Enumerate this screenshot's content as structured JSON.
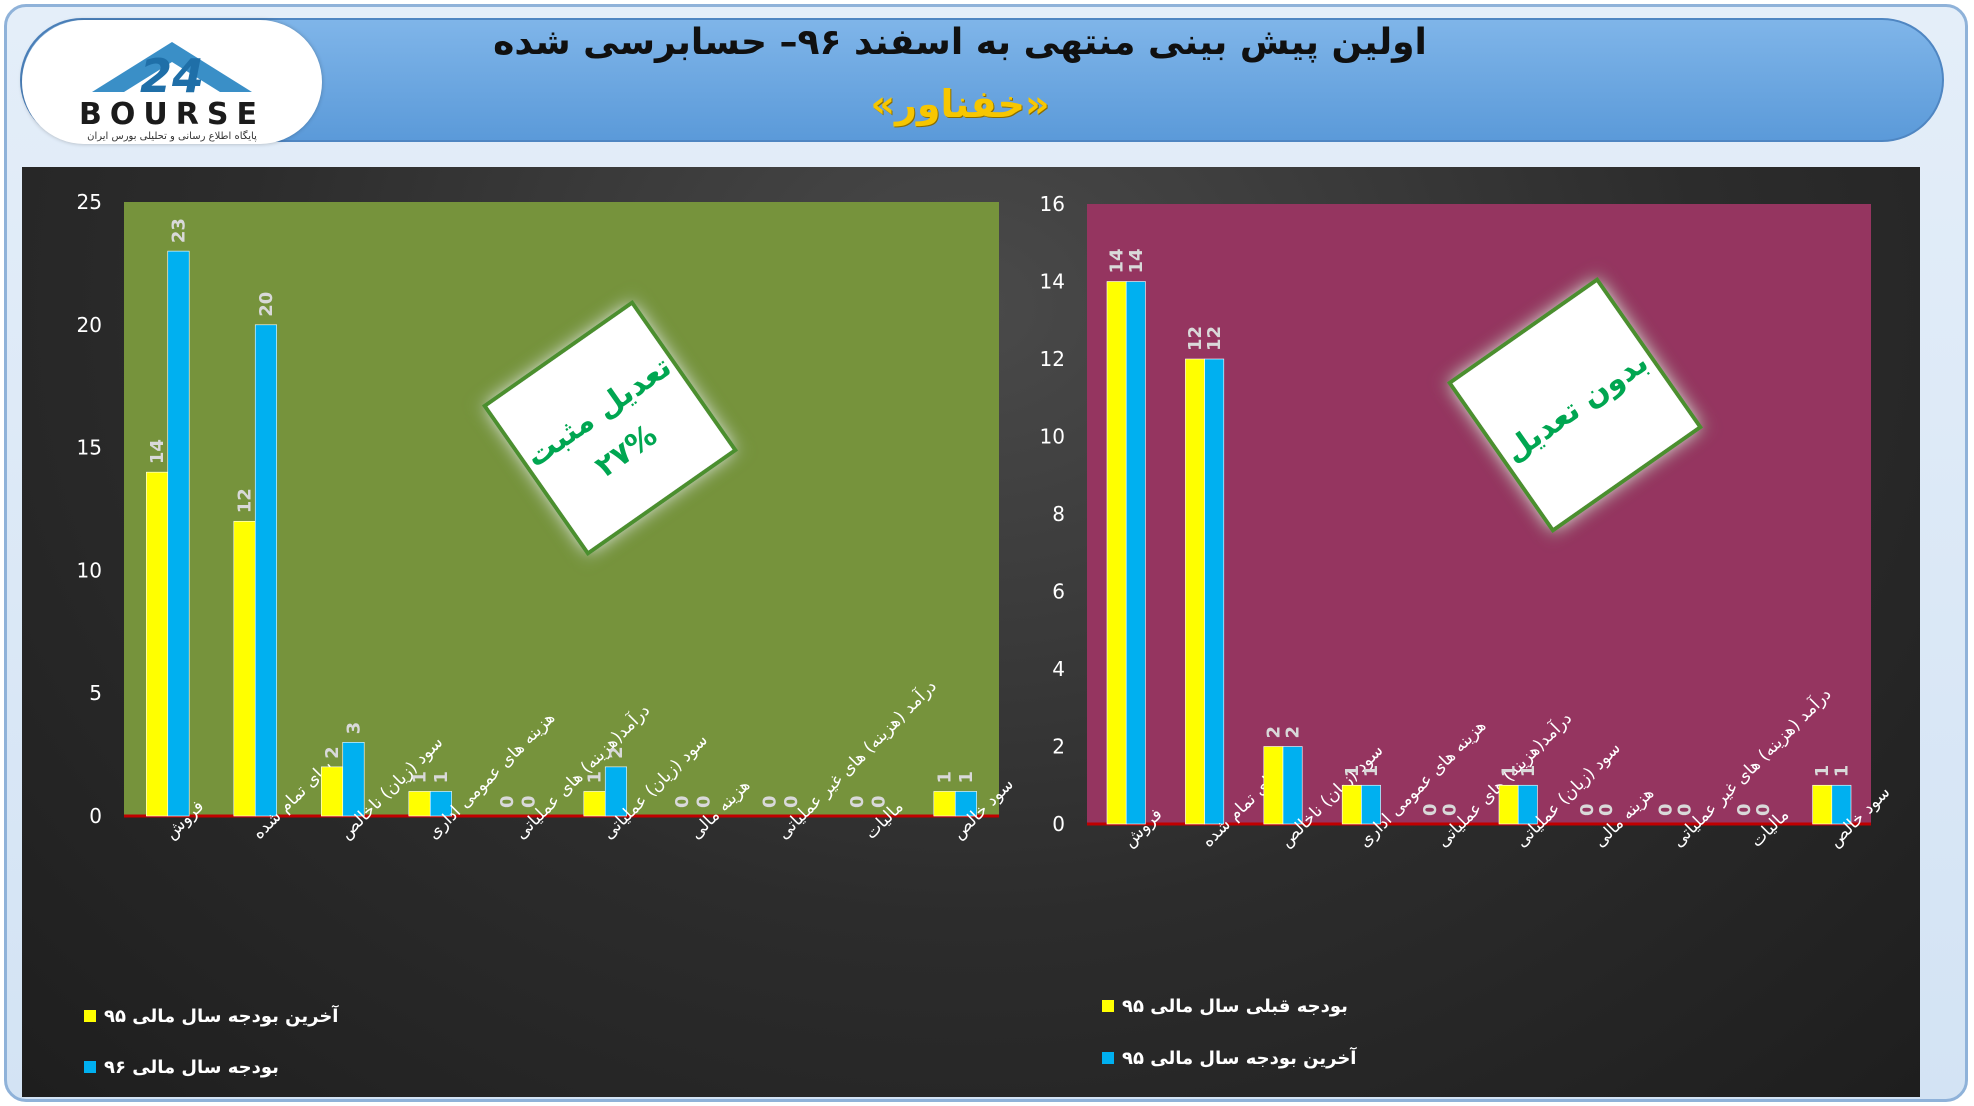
{
  "header": {
    "title": "اولین پیش بینی منتهی به اسفند ۹۶– حسابرسی شده",
    "subtitle": "«خفناور»",
    "logo_text": "BOURSE",
    "logo_number": "24",
    "logo_tagline": "پایگاه اطلاع رسانی و تحلیلی بورس ایران"
  },
  "colors": {
    "series_yellow": "#ffff00",
    "series_blue": "#00b0f0",
    "left_plot_bg": "#76933c",
    "right_plot_bg": "#953560",
    "badge_text": "#00a651"
  },
  "chart_data": [
    {
      "type": "bar",
      "position": "left",
      "categories": [
        "فروش",
        "بهای تمام شده",
        "سود (زیان) ناخالص",
        "هزینه های عمومی اداری",
        "درآمد(هزینه) های عملیاتی",
        "سود (زیان) عملیاتی",
        "هزینه مالی",
        "درآمد (هزینه) های غیر عملیاتی",
        "مالیات",
        "سود خالص"
      ],
      "series": [
        {
          "name": "آخرین بودجه سال مالی ۹۵",
          "color": "#ffff00",
          "values": [
            14,
            12,
            2,
            1,
            0,
            1,
            0,
            0,
            0,
            1
          ]
        },
        {
          "name": "بودجه سال مالی ۹۶",
          "color": "#00b0f0",
          "values": [
            23,
            20,
            3,
            1,
            0,
            2,
            0,
            0,
            0,
            1
          ]
        }
      ],
      "ylim": [
        0,
        25
      ],
      "yticks": [
        0,
        5,
        10,
        15,
        20,
        25
      ],
      "grid": false,
      "legend": "bottom-left",
      "badge": {
        "line1": "تعدیل مثبت",
        "line2": "۲۷%"
      }
    },
    {
      "type": "bar",
      "position": "right",
      "categories": [
        "فروش",
        "بهای تمام شده",
        "سود (زیان) ناخالص",
        "هزینه های عمومی اداری",
        "درآمد(هزینه) های عملیاتی",
        "سود (زیان) عملیاتی",
        "هزینه مالی",
        "درآمد (هزینه) های غیر عملیاتی",
        "مالیات",
        "سود خالص"
      ],
      "series": [
        {
          "name": "بودجه قبلی سال مالی ۹۵",
          "color": "#ffff00",
          "values": [
            14,
            12,
            2,
            1,
            0,
            1,
            0,
            0,
            0,
            1
          ]
        },
        {
          "name": "آخرین بودجه سال مالی ۹۵",
          "color": "#00b0f0",
          "values": [
            14,
            12,
            2,
            1,
            0,
            1,
            0,
            0,
            0,
            1
          ]
        }
      ],
      "ylim": [
        0,
        16
      ],
      "yticks": [
        0,
        2,
        4,
        6,
        8,
        10,
        12,
        14,
        16
      ],
      "grid": false,
      "legend": "bottom-left",
      "badge": {
        "line1": "بدون تعدیل",
        "line2": ""
      }
    }
  ]
}
